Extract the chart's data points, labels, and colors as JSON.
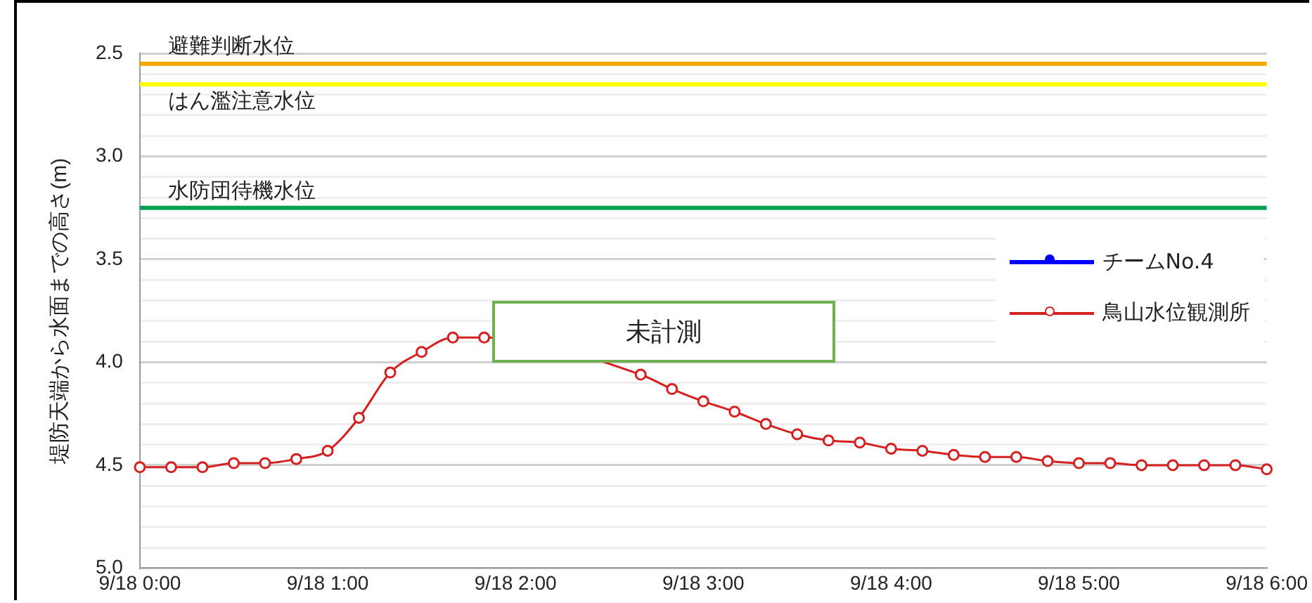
{
  "chart_data": {
    "type": "line",
    "ylabel": "堤防天端から水面までの高さ(m)",
    "categories": [
      "9/18 0:00",
      null,
      null,
      null,
      null,
      null,
      "9/18 1:00",
      null,
      null,
      null,
      null,
      null,
      "9/18 2:00",
      null,
      null,
      null,
      null,
      null,
      "9/18 3:00",
      null,
      null,
      null,
      null,
      null,
      "9/18 4:00",
      null,
      null,
      null,
      null,
      null,
      "9/18 5:00",
      null,
      null,
      null,
      null,
      null,
      "9/18 6:00"
    ],
    "series": [
      {
        "name": "チームNo.4",
        "color": "#0000ff",
        "values": [
          null,
          null,
          null,
          null,
          null,
          null,
          null,
          null,
          null,
          null,
          null,
          null,
          null,
          null,
          null,
          null,
          null,
          null,
          null,
          null,
          null,
          null,
          null,
          null,
          null,
          null,
          null,
          null,
          null,
          null,
          null,
          null,
          null,
          null,
          null,
          null,
          null
        ]
      },
      {
        "name": "鳥山水位観測所",
        "color": "#d42020",
        "values": [
          4.51,
          4.51,
          4.51,
          4.49,
          4.49,
          4.47,
          4.43,
          4.27,
          4.05,
          3.95,
          3.88,
          3.88,
          null,
          null,
          null,
          null,
          4.06,
          4.13,
          4.19,
          4.24,
          4.3,
          4.35,
          4.38,
          4.39,
          4.42,
          4.43,
          4.45,
          4.46,
          4.46,
          4.48,
          4.49,
          4.49,
          4.5,
          4.5,
          4.5,
          4.5,
          4.52
        ]
      }
    ],
    "ylim": [
      5.0,
      2.5
    ],
    "yticks": [
      {
        "value": 2.5,
        "label": "2.5"
      },
      {
        "value": 2.6,
        "label": null
      },
      {
        "value": 2.7,
        "label": null
      },
      {
        "value": 2.8,
        "label": null
      },
      {
        "value": 2.9,
        "label": null
      },
      {
        "value": 3.0,
        "label": "3.0"
      },
      {
        "value": 3.1,
        "label": null
      },
      {
        "value": 3.2,
        "label": null
      },
      {
        "value": 3.3,
        "label": null
      },
      {
        "value": 3.4,
        "label": null
      },
      {
        "value": 3.5,
        "label": "3.5"
      },
      {
        "value": 3.6,
        "label": null
      },
      {
        "value": 3.7,
        "label": null
      },
      {
        "value": 3.8,
        "label": null
      },
      {
        "value": 3.9,
        "label": null
      },
      {
        "value": 4.0,
        "label": "4.0"
      },
      {
        "value": 4.1,
        "label": null
      },
      {
        "value": 4.2,
        "label": null
      },
      {
        "value": 4.3,
        "label": null
      },
      {
        "value": 4.4,
        "label": null
      },
      {
        "value": 4.5,
        "label": "4.5"
      },
      {
        "value": 4.6,
        "label": null
      },
      {
        "value": 4.7,
        "label": null
      },
      {
        "value": 4.8,
        "label": null
      },
      {
        "value": 4.9,
        "label": null
      },
      {
        "value": 5.0,
        "label": "5.0"
      }
    ],
    "ref_lines": [
      {
        "axis": "y",
        "value": 2.55,
        "label": "避難判断水位",
        "color": "#f5a800"
      },
      {
        "axis": "y",
        "value": 2.65,
        "label": "はん濫注意水位",
        "color": "#ffff00"
      },
      {
        "axis": "y",
        "value": 3.25,
        "label": "水防団待機水位",
        "color": "#00a050"
      }
    ],
    "annotations": [
      "未計測"
    ],
    "grid": "y",
    "legend": "right",
    "marker": "circle",
    "line_style": "solid"
  }
}
